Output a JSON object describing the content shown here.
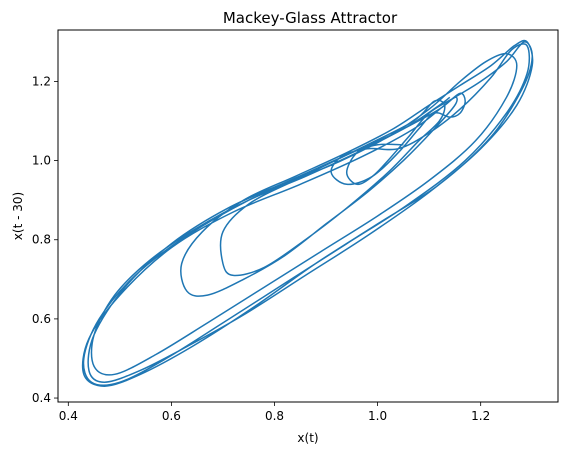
{
  "chart_data": {
    "type": "line",
    "title": "Mackey-Glass Attractor",
    "xlabel": "x(t)",
    "ylabel": "x(t - 30)",
    "xlim": [
      0.38,
      1.35
    ],
    "ylim": [
      0.39,
      1.33
    ],
    "xticks": [
      0.4,
      0.6,
      0.8,
      1.0,
      1.2
    ],
    "xtick_labels": [
      "0.4",
      "0.6",
      "0.8",
      "1.0",
      "1.2"
    ],
    "yticks": [
      0.4,
      0.6,
      0.8,
      1.0,
      1.2
    ],
    "ytick_labels": [
      "0.4",
      "0.6",
      "0.8",
      "1.0",
      "1.2"
    ],
    "grid": false,
    "series": [
      {
        "color": "#1f77b4",
        "points": [
          [
            1.05,
            1.04
          ],
          [
            1.0,
            1.04
          ],
          [
            0.96,
            1.02
          ],
          [
            0.94,
            0.97
          ],
          [
            0.96,
            0.94
          ],
          [
            0.99,
            0.96
          ],
          [
            1.02,
            1.0
          ],
          [
            1.06,
            1.06
          ],
          [
            1.1,
            1.12
          ],
          [
            1.15,
            1.16
          ],
          [
            1.2,
            1.2
          ],
          [
            1.25,
            1.25
          ],
          [
            1.285,
            1.3
          ],
          [
            1.3,
            1.26
          ],
          [
            1.28,
            1.18
          ],
          [
            1.22,
            1.06
          ],
          [
            1.12,
            0.94
          ],
          [
            1.0,
            0.84
          ],
          [
            0.88,
            0.74
          ],
          [
            0.76,
            0.63
          ],
          [
            0.64,
            0.53
          ],
          [
            0.54,
            0.46
          ],
          [
            0.47,
            0.43
          ],
          [
            0.43,
            0.46
          ],
          [
            0.44,
            0.55
          ],
          [
            0.5,
            0.66
          ],
          [
            0.6,
            0.78
          ],
          [
            0.72,
            0.87
          ],
          [
            0.85,
            0.94
          ],
          [
            0.97,
            1.01
          ],
          [
            1.07,
            1.08
          ],
          [
            1.13,
            1.14
          ],
          [
            1.16,
            1.17
          ],
          [
            1.17,
            1.15
          ],
          [
            1.16,
            1.12
          ],
          [
            1.14,
            1.11
          ],
          [
            1.11,
            1.12
          ],
          [
            1.08,
            1.08
          ],
          [
            1.04,
            1.02
          ],
          [
            0.99,
            0.96
          ],
          [
            0.94,
            0.94
          ],
          [
            0.91,
            0.97
          ],
          [
            0.93,
            1.01
          ],
          [
            0.98,
            1.03
          ],
          [
            1.04,
            1.03
          ],
          [
            1.1,
            1.07
          ],
          [
            1.16,
            1.13
          ],
          [
            1.22,
            1.21
          ],
          [
            1.26,
            1.28
          ],
          [
            1.29,
            1.29
          ],
          [
            1.29,
            1.22
          ],
          [
            1.25,
            1.12
          ],
          [
            1.17,
            1.0
          ],
          [
            1.06,
            0.89
          ],
          [
            0.94,
            0.79
          ],
          [
            0.82,
            0.69
          ],
          [
            0.7,
            0.59
          ],
          [
            0.59,
            0.5
          ],
          [
            0.5,
            0.44
          ],
          [
            0.445,
            0.44
          ],
          [
            0.43,
            0.5
          ],
          [
            0.46,
            0.6
          ],
          [
            0.53,
            0.71
          ],
          [
            0.63,
            0.81
          ],
          [
            0.75,
            0.9
          ],
          [
            0.87,
            0.97
          ],
          [
            0.98,
            1.04
          ],
          [
            1.07,
            1.1
          ],
          [
            1.11,
            1.15
          ],
          [
            1.13,
            1.14
          ],
          [
            1.12,
            1.1
          ],
          [
            1.08,
            1.05
          ],
          [
            1.02,
            0.97
          ],
          [
            0.94,
            0.88
          ],
          [
            0.86,
            0.8
          ],
          [
            0.78,
            0.73
          ],
          [
            0.72,
            0.71
          ],
          [
            0.7,
            0.74
          ],
          [
            0.7,
            0.82
          ],
          [
            0.75,
            0.89
          ],
          [
            0.84,
            0.95
          ],
          [
            0.93,
            1.0
          ],
          [
            1.02,
            1.06
          ],
          [
            1.1,
            1.13
          ],
          [
            1.16,
            1.2
          ],
          [
            1.21,
            1.25
          ],
          [
            1.25,
            1.27
          ],
          [
            1.27,
            1.24
          ],
          [
            1.25,
            1.16
          ],
          [
            1.19,
            1.05
          ],
          [
            1.1,
            0.95
          ],
          [
            1.0,
            0.86
          ],
          [
            0.89,
            0.77
          ],
          [
            0.78,
            0.68
          ],
          [
            0.67,
            0.59
          ],
          [
            0.57,
            0.51
          ],
          [
            0.49,
            0.46
          ],
          [
            0.45,
            0.48
          ],
          [
            0.45,
            0.56
          ],
          [
            0.49,
            0.66
          ],
          [
            0.56,
            0.75
          ],
          [
            0.65,
            0.83
          ],
          [
            0.75,
            0.9
          ],
          [
            0.86,
            0.96
          ],
          [
            0.96,
            1.02
          ],
          [
            1.05,
            1.08
          ],
          [
            1.12,
            1.13
          ],
          [
            1.15,
            1.16
          ],
          [
            1.15,
            1.14
          ],
          [
            1.11,
            1.08
          ],
          [
            1.05,
            1.0
          ],
          [
            0.98,
            0.92
          ],
          [
            0.9,
            0.84
          ],
          [
            0.82,
            0.76
          ],
          [
            0.74,
            0.7
          ],
          [
            0.67,
            0.66
          ],
          [
            0.63,
            0.67
          ],
          [
            0.62,
            0.74
          ],
          [
            0.66,
            0.82
          ],
          [
            0.74,
            0.9
          ],
          [
            0.84,
            0.96
          ],
          [
            0.94,
            1.02
          ],
          [
            1.03,
            1.08
          ],
          [
            1.1,
            1.14
          ],
          [
            1.16,
            1.19
          ],
          [
            1.22,
            1.24
          ],
          [
            1.265,
            1.29
          ],
          [
            1.29,
            1.3
          ],
          [
            1.3,
            1.24
          ],
          [
            1.27,
            1.14
          ],
          [
            1.2,
            1.03
          ],
          [
            1.1,
            0.92
          ],
          [
            0.98,
            0.81
          ],
          [
            0.86,
            0.71
          ],
          [
            0.74,
            0.61
          ],
          [
            0.63,
            0.53
          ],
          [
            0.54,
            0.47
          ],
          [
            0.47,
            0.44
          ],
          [
            0.44,
            0.47
          ],
          [
            0.45,
            0.56
          ],
          [
            0.51,
            0.68
          ],
          [
            0.6,
            0.79
          ],
          [
            0.71,
            0.88
          ],
          [
            0.83,
            0.95
          ],
          [
            0.95,
            1.02
          ],
          [
            1.05,
            1.08
          ],
          [
            1.12,
            1.14
          ],
          [
            1.14,
            1.16
          ]
        ]
      }
    ]
  }
}
